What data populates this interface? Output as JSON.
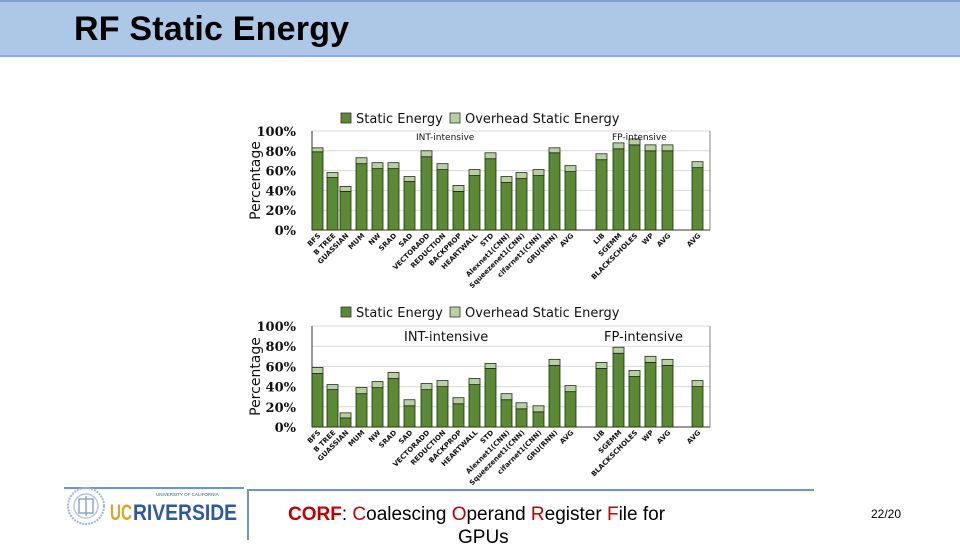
{
  "slide": {
    "title": "RF Static Energy",
    "page_number": "22/20",
    "footer": {
      "parts": [
        {
          "text": "CORF",
          "red": true,
          "bold": true
        },
        {
          "text": ": ",
          "red": false
        },
        {
          "text": "C",
          "red": true
        },
        {
          "text": "oalescing ",
          "red": false
        },
        {
          "text": "O",
          "red": true
        },
        {
          "text": "perand ",
          "red": false
        },
        {
          "text": "R",
          "red": true
        },
        {
          "text": "egister ",
          "red": false
        },
        {
          "text": "F",
          "red": true
        },
        {
          "text": "ile for",
          "red": false
        }
      ],
      "line2": "GPUs"
    },
    "logo": {
      "university": "UNIVERSITY OF CALIFORNIA",
      "name_uc": "UC",
      "name_r": "RIVERSIDE"
    }
  },
  "colors": {
    "static": "#5b8a34",
    "overhead": "#b6d0a2",
    "bar_border": "#1e2e12",
    "grid": "#d9d9d9",
    "title_bg": "#adc8e6",
    "accent_red": "#c00000"
  },
  "chart_data": [
    {
      "type": "bar",
      "stacked": true,
      "title": "",
      "ylabel": "Percentage",
      "xlabel": "",
      "ylim": [
        0,
        100
      ],
      "yticks": [
        "0%",
        "20%",
        "40%",
        "60%",
        "80%",
        "100%"
      ],
      "legend": [
        "Static Energy",
        "Overhead Static Energy"
      ],
      "legend_position": "top",
      "annotations": [
        "INT-intensive",
        "FP-intensive"
      ],
      "categories": [
        "BFS",
        "B TREE",
        "GUASSIAN",
        "MUM",
        "NW",
        "SRAD",
        "SAD",
        "VECTORADD",
        "REDUCTION",
        "BACKPROP",
        "HEARTWALL",
        "STD",
        "Alexnet1(CNN)",
        "Squeezenet1(CNN)",
        "cifarnet1(CNN)",
        "GRU(RNN)",
        "AVG",
        "LIB",
        "SGEMM",
        "BLACKSCHOLES",
        "WP",
        "AVG",
        "AVG"
      ],
      "series": [
        {
          "name": "Static Energy",
          "values": [
            79,
            53,
            39,
            67,
            62,
            62,
            49,
            74,
            61,
            39,
            55,
            72,
            48,
            52,
            55,
            78,
            59,
            71,
            82,
            86,
            80,
            80,
            63
          ]
        },
        {
          "name": "Overhead Static Energy",
          "values": [
            4,
            5,
            5,
            6,
            6,
            6,
            5,
            6,
            6,
            6,
            6,
            6,
            6,
            6,
            6,
            5,
            6,
            6,
            6,
            6,
            6,
            6,
            6
          ]
        }
      ]
    },
    {
      "type": "bar",
      "stacked": true,
      "title": "",
      "ylabel": "Percentage",
      "xlabel": "",
      "ylim": [
        0,
        100
      ],
      "yticks": [
        "0%",
        "20%",
        "40%",
        "60%",
        "80%",
        "100%"
      ],
      "legend": [
        "Static Energy",
        "Overhead Static Energy"
      ],
      "legend_position": "top",
      "annotations": [
        "INT-intensive",
        "FP-intensive"
      ],
      "categories": [
        "BFS",
        "B TREE",
        "GUASSIAN",
        "MUM",
        "NW",
        "SRAD",
        "SAD",
        "VECTORADD",
        "REDUCTION",
        "BACKPROP",
        "HEARTWALL",
        "STD",
        "Alexnet1(CNN)",
        "Squeezenet1(CNN)",
        "cifarnet1(CNN)",
        "GRU(RNN)",
        "AVG",
        "LIB",
        "SGEMM",
        "BLACKSCHOLES",
        "WP",
        "AVG",
        "AVG"
      ],
      "series": [
        {
          "name": "Static Energy",
          "values": [
            53,
            37,
            9,
            33,
            39,
            48,
            21,
            37,
            40,
            23,
            42,
            58,
            27,
            18,
            15,
            61,
            35,
            58,
            73,
            50,
            64,
            61,
            40
          ]
        },
        {
          "name": "Overhead Static Energy",
          "values": [
            6,
            5,
            5,
            6,
            6,
            6,
            6,
            6,
            6,
            6,
            6,
            5,
            6,
            6,
            6,
            6,
            6,
            6,
            6,
            6,
            6,
            6,
            6
          ]
        }
      ]
    }
  ]
}
